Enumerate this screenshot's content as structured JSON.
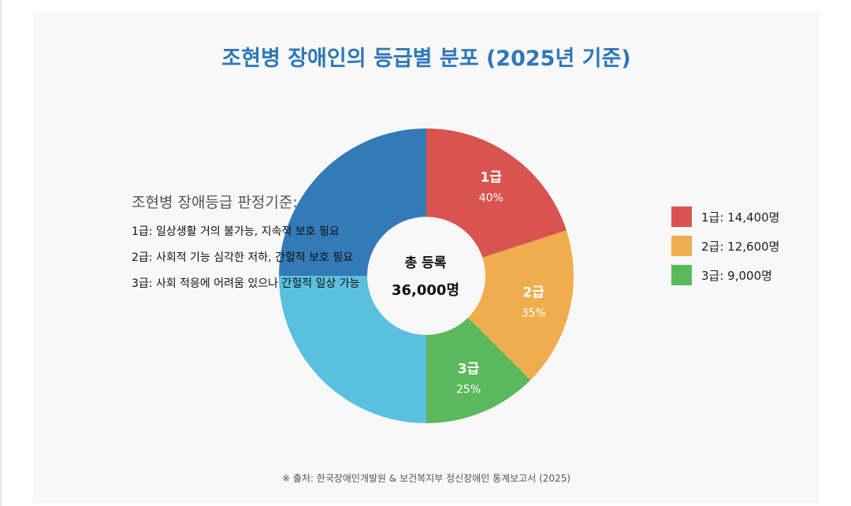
{
  "title": "조현병 장애인의 등급별 분포 (2025년 기준)",
  "criteria": {
    "title": "조현병 장애등급 판정기준:",
    "items": [
      "1급: 일상생활 거의 불가능, 지속적 보호 필요",
      "2급: 사회적 기능 심각한 저하, 간헐적 보호 필요",
      "3급: 사회 적응에 어려움 있으나 간헐적 일상 가능"
    ]
  },
  "center": {
    "label": "총 등록",
    "value": "36,000명"
  },
  "legend": [
    {
      "label": "1급: 14,400명",
      "color": "#d9534f"
    },
    {
      "label": "2급: 12,600명",
      "color": "#f0ad4e"
    },
    {
      "label": "3급: 9,000명",
      "color": "#5cb85c"
    }
  ],
  "footnote": "※ 출처: 한국장애인개발원 & 보건복지부 정신장애인 통계보고서 (2025)",
  "colors": {
    "background": "#f8f8f8",
    "title": "#2f77b8",
    "decor_dark_blue": "#337ab7",
    "decor_light_blue": "#5bc0de"
  },
  "chart_data": {
    "type": "pie",
    "donut": true,
    "categories": [
      "1급",
      "2급",
      "3급"
    ],
    "values": [
      14400,
      12600,
      9000
    ],
    "percent_labels": [
      "40%",
      "35%",
      "25%"
    ],
    "colors": [
      "#d9534f",
      "#f0ad4e",
      "#5cb85c"
    ],
    "title": "조현병 장애인의 등급별 분포 (2025년 기준)",
    "legend_position": "right",
    "total_label": "총 등록",
    "total_value": "36,000명"
  }
}
